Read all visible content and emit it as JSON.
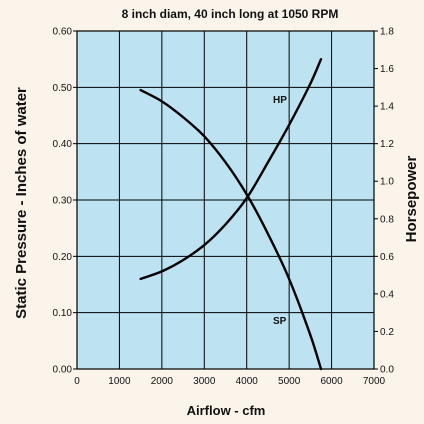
{
  "chart_data": {
    "type": "line",
    "title": "8 inch diam, 40 inch long at 1050 RPM",
    "xlabel": "Airflow - cfm",
    "ylabel_left": "Static Pressure - Inches of water",
    "ylabel_right": "Horsepower",
    "xlim": [
      0,
      7000
    ],
    "ylim_left": [
      0,
      0.6
    ],
    "ylim_right": [
      0,
      1.8
    ],
    "grid": true,
    "x_ticks": [
      "0",
      "1000",
      "2000",
      "3000",
      "4000",
      "5000",
      "6000",
      "7000"
    ],
    "y_left_ticks": [
      "0.00",
      "0.10",
      "0.20",
      "0.30",
      "0.40",
      "0.50",
      "0.60"
    ],
    "y_right_ticks": [
      "0.0",
      "0.2",
      "0.4",
      "0.6",
      "0.8",
      "1.0",
      "1.2",
      "1.4",
      "1.6",
      "1.8"
    ],
    "background_color": "#bde3f2",
    "series": [
      {
        "name": "SP",
        "axis": "left",
        "x": [
          1500,
          2000,
          2500,
          3000,
          3500,
          4000,
          4500,
          5000,
          5500,
          5750
        ],
        "y": [
          0.495,
          0.475,
          0.447,
          0.413,
          0.367,
          0.31,
          0.24,
          0.16,
          0.06,
          0.0
        ]
      },
      {
        "name": "HP",
        "axis": "right",
        "x": [
          1500,
          2000,
          2500,
          3000,
          3500,
          4000,
          4500,
          5000,
          5500,
          5750
        ],
        "y": [
          0.48,
          0.52,
          0.58,
          0.66,
          0.77,
          0.91,
          1.1,
          1.3,
          1.52,
          1.65
        ]
      }
    ]
  }
}
